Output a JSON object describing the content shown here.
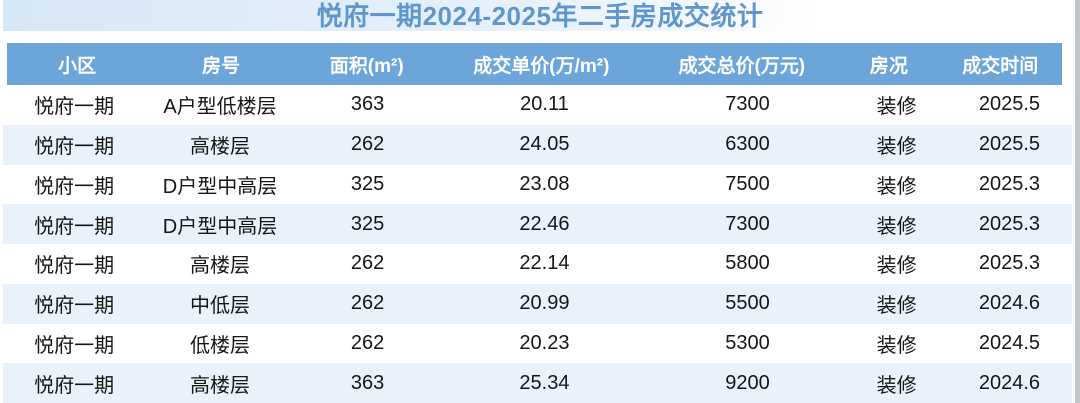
{
  "page": {
    "title": "悦府一期2024-2025年二手房成交统计"
  },
  "chart_data": {
    "type": "table",
    "title": "悦府一期2024-2025年二手房成交统计",
    "columns": [
      "小区",
      "房号",
      "面积(m²)",
      "成交单价(万/m²)",
      "成交总价(万元)",
      "房况",
      "成交时间"
    ],
    "rows": [
      [
        "悦府一期",
        "A户型低楼层",
        "363",
        "20.11",
        "7300",
        "装修",
        "2025.5"
      ],
      [
        "悦府一期",
        "高楼层",
        "262",
        "24.05",
        "6300",
        "装修",
        "2025.5"
      ],
      [
        "悦府一期",
        "D户型中高层",
        "325",
        "23.08",
        "7500",
        "装修",
        "2025.3"
      ],
      [
        "悦府一期",
        "D户型中高层",
        "325",
        "22.46",
        "7300",
        "装修",
        "2025.3"
      ],
      [
        "悦府一期",
        "高楼层",
        "262",
        "22.14",
        "5800",
        "装修",
        "2025.3"
      ],
      [
        "悦府一期",
        "中低层",
        "262",
        "20.99",
        "5500",
        "装修",
        "2024.6"
      ],
      [
        "悦府一期",
        "低楼层",
        "262",
        "20.23",
        "5300",
        "装修",
        "2024.5"
      ],
      [
        "悦府一期",
        "高楼层",
        "363",
        "25.34",
        "9200",
        "装修",
        "2024.6"
      ]
    ],
    "layout": {
      "striped_rows": true,
      "stripe_pattern": "odd-rows-light-blue",
      "column_widths_pct": [
        13.3,
        14.0,
        13.6,
        19.5,
        18.5,
        9.4,
        11.7
      ]
    }
  },
  "colors": {
    "header-bg": "#6ca5da",
    "header-text": "#ffffff",
    "title-text": "#5f97cd",
    "title-band": "#d6e7f6",
    "row-base": "#ffffff",
    "row-alt": "#e9f1fa",
    "body-text": "#161616",
    "edge-strip": "#c1c4c8"
  }
}
